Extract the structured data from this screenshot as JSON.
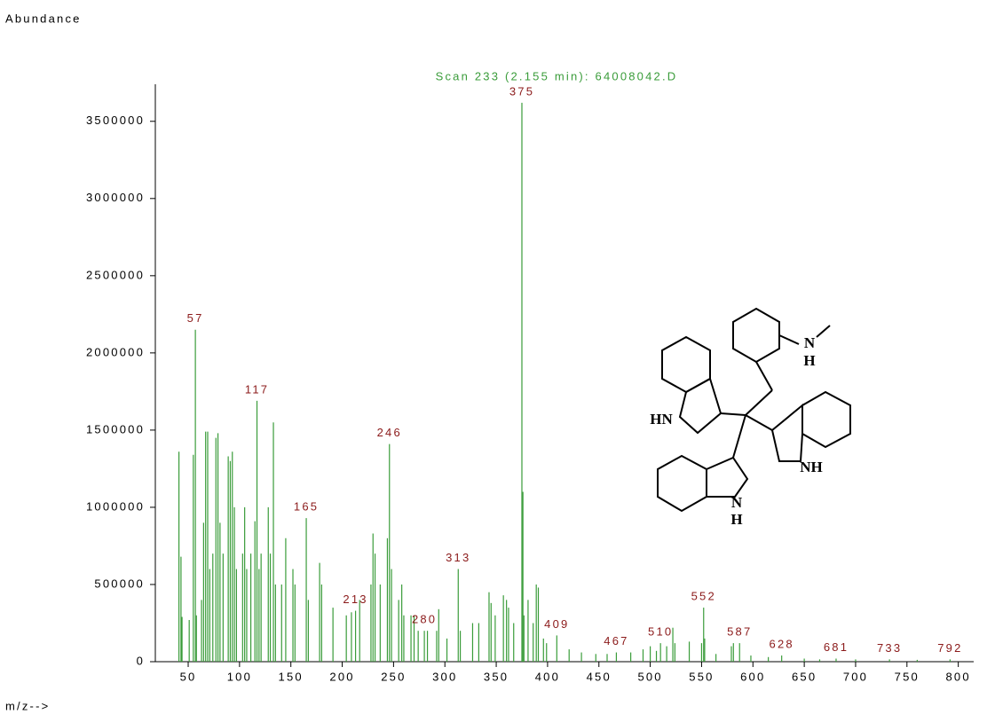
{
  "chart_data": {
    "type": "spectrum",
    "title": "Scan 233 (2.155 min): 64008042.D",
    "y_label": "Abundance",
    "x_label": "m/z-->",
    "color": "#3a9c3a",
    "annotation_color": "#8b1a1a",
    "x": [
      41,
      43,
      44,
      51,
      55,
      57,
      58,
      63,
      65,
      67,
      69,
      71,
      74,
      77,
      79,
      81,
      84,
      89,
      91,
      93,
      95,
      97,
      103,
      105,
      107,
      111,
      115,
      117,
      119,
      121,
      128,
      130,
      133,
      135,
      141,
      145,
      152,
      154,
      165,
      167,
      178,
      180,
      191,
      204,
      209,
      213,
      217,
      228,
      230,
      232,
      237,
      244,
      246,
      248,
      255,
      258,
      260,
      267,
      270,
      274,
      280,
      283,
      292,
      294,
      302,
      313,
      315,
      327,
      333,
      343,
      345,
      349,
      357,
      360,
      362,
      367,
      375,
      376,
      377,
      381,
      386,
      389,
      391,
      396,
      399,
      409,
      421,
      433,
      447,
      458,
      467,
      481,
      493,
      500,
      506,
      510,
      516,
      522,
      524,
      538,
      550,
      552,
      553,
      564,
      579,
      581,
      587,
      598,
      615,
      628,
      650,
      665,
      681,
      700,
      733,
      760,
      792
    ],
    "values": [
      1360000,
      680000,
      290000,
      270000,
      1340000,
      2150000,
      300000,
      400000,
      900000,
      1490000,
      1490000,
      600000,
      700000,
      1450000,
      1480000,
      900000,
      700000,
      1330000,
      1300000,
      1360000,
      1000000,
      600000,
      700000,
      1000000,
      600000,
      700000,
      910000,
      1690000,
      600000,
      700000,
      1000000,
      700000,
      1550000,
      500000,
      500000,
      800000,
      600000,
      500000,
      930000,
      400000,
      640000,
      500000,
      350000,
      300000,
      320000,
      330000,
      400000,
      500000,
      830000,
      700000,
      500000,
      800000,
      1410000,
      600000,
      400000,
      500000,
      300000,
      300000,
      300000,
      200000,
      200000,
      200000,
      200000,
      340000,
      150000,
      600000,
      200000,
      250000,
      250000,
      450000,
      380000,
      300000,
      430000,
      400000,
      350000,
      250000,
      3620000,
      1100000,
      300000,
      400000,
      250000,
      500000,
      480000,
      150000,
      120000,
      170000,
      80000,
      60000,
      50000,
      50000,
      60000,
      60000,
      80000,
      100000,
      70000,
      120000,
      100000,
      220000,
      120000,
      130000,
      120000,
      350000,
      150000,
      50000,
      100000,
      120000,
      120000,
      40000,
      30000,
      40000,
      20000,
      15000,
      20000,
      15000,
      15000,
      12000,
      15000
    ],
    "annotations": [
      57,
      117,
      165,
      213,
      246,
      280,
      313,
      375,
      409,
      467,
      510,
      552,
      587,
      628,
      681,
      733,
      792
    ],
    "xlim": [
      18,
      815
    ],
    "ylim": [
      0,
      3740000
    ],
    "xticks": [
      50,
      100,
      150,
      200,
      250,
      300,
      350,
      400,
      450,
      500,
      550,
      600,
      650,
      700,
      750,
      800
    ],
    "yticks": [
      0,
      500000,
      1000000,
      1500000,
      2000000,
      2500000,
      3000000,
      3500000
    ]
  },
  "structure_labels": {
    "amine_n": "N",
    "amine_h": "H",
    "left_nh": "HN",
    "right_nh": "NH",
    "bottom_n": "N",
    "bottom_h": "H"
  }
}
